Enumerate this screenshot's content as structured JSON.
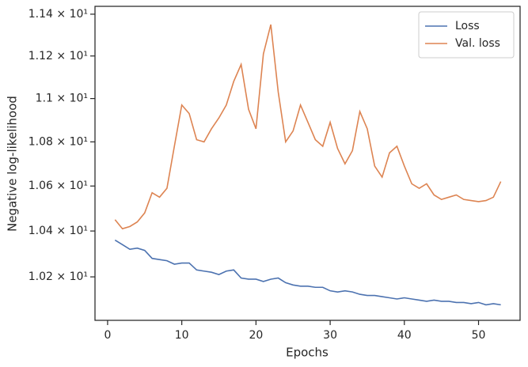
{
  "chart_data": {
    "type": "line",
    "x_label": "Epochs",
    "y_label": "Negative log-likelihood",
    "x": [
      1,
      2,
      3,
      4,
      5,
      6,
      7,
      8,
      9,
      10,
      11,
      12,
      13,
      14,
      15,
      16,
      17,
      18,
      19,
      20,
      21,
      22,
      23,
      24,
      25,
      26,
      27,
      28,
      29,
      30,
      31,
      32,
      33,
      34,
      35,
      36,
      37,
      38,
      39,
      40,
      41,
      42,
      43,
      44,
      45,
      46,
      47,
      48,
      49,
      50,
      51,
      52,
      53
    ],
    "series": [
      {
        "name": "Loss",
        "color": "#4c72b0",
        "values": [
          10.36,
          10.34,
          10.32,
          10.325,
          10.315,
          10.28,
          10.275,
          10.27,
          10.255,
          10.26,
          10.26,
          10.23,
          10.225,
          10.22,
          10.21,
          10.225,
          10.23,
          10.195,
          10.19,
          10.19,
          10.18,
          10.19,
          10.195,
          10.175,
          10.165,
          10.16,
          10.16,
          10.155,
          10.155,
          10.14,
          10.135,
          10.14,
          10.135,
          10.125,
          10.12,
          10.12,
          10.115,
          10.11,
          10.105,
          10.11,
          10.105,
          10.1,
          10.095,
          10.1,
          10.095,
          10.095,
          10.09,
          10.09,
          10.085,
          10.09,
          10.08,
          10.085,
          10.08
        ]
      },
      {
        "name": "Val. loss",
        "color": "#dd8452",
        "values": [
          10.45,
          10.41,
          10.42,
          10.44,
          10.48,
          10.57,
          10.55,
          10.59,
          10.78,
          10.97,
          10.93,
          10.81,
          10.8,
          10.86,
          10.91,
          10.97,
          11.08,
          11.16,
          10.95,
          10.86,
          11.21,
          11.35,
          11.03,
          10.8,
          10.85,
          10.97,
          10.89,
          10.81,
          10.78,
          10.89,
          10.77,
          10.7,
          10.76,
          10.94,
          10.86,
          10.69,
          10.64,
          10.75,
          10.78,
          10.69,
          10.61,
          10.59,
          10.61,
          10.56,
          10.54,
          10.55,
          10.56,
          10.54,
          10.535,
          10.53,
          10.535,
          10.55,
          10.62
        ]
      }
    ],
    "xlim": [
      -1.7,
      55.6
    ],
    "xticks": [
      0,
      10,
      20,
      30,
      40,
      50
    ],
    "ylim": [
      10.014,
      11.438
    ],
    "log_y": true,
    "yticks": [
      {
        "value": 10.2,
        "label": "1.02 × 10¹"
      },
      {
        "value": 10.4,
        "label": "1.04 × 10¹"
      },
      {
        "value": 10.6,
        "label": "1.06 × 10¹"
      },
      {
        "value": 10.8,
        "label": "1.08 × 10¹"
      },
      {
        "value": 11.0,
        "label": "1.1 × 10¹"
      },
      {
        "value": 11.2,
        "label": "1.12 × 10¹"
      },
      {
        "value": 11.4,
        "label": "1.14 × 10¹"
      }
    ],
    "legend": "upper right"
  }
}
